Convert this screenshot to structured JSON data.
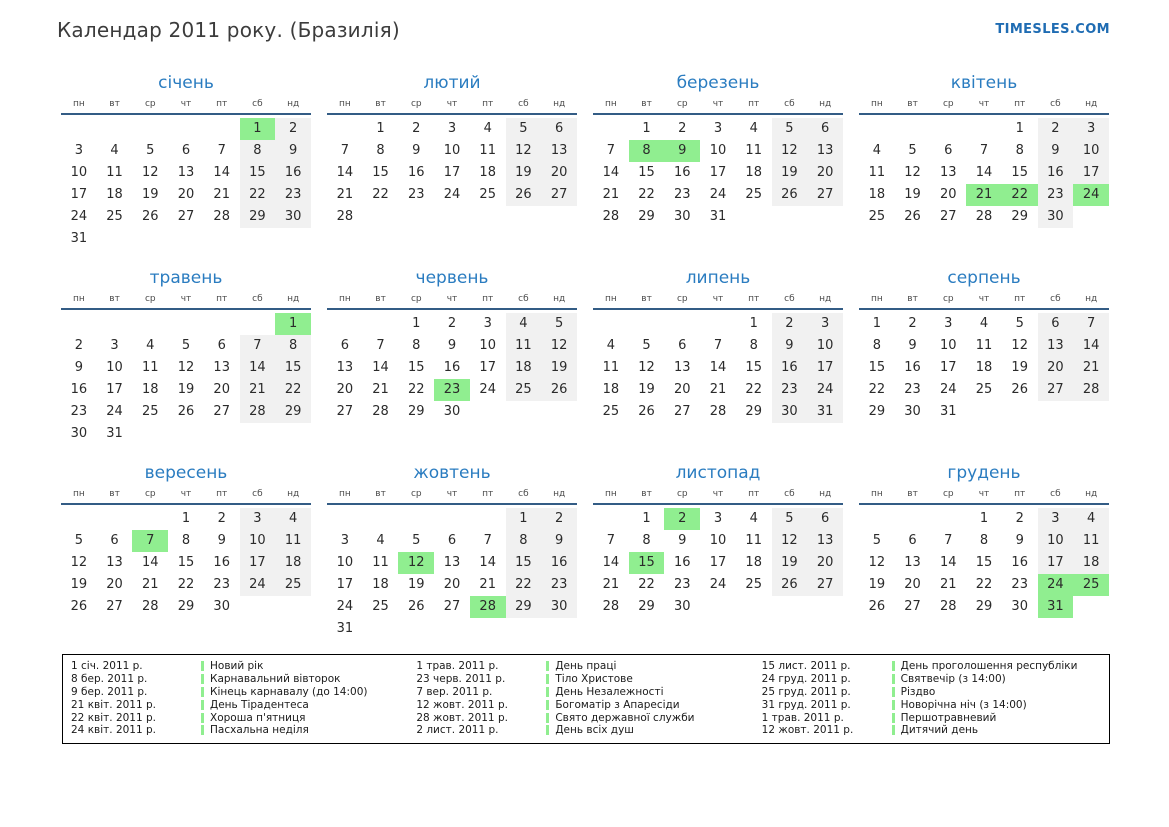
{
  "header": {
    "title": "Календар 2011 року. (Бразилія)",
    "brand": "TIMESLES.COM"
  },
  "weekdays": [
    "пн",
    "вт",
    "ср",
    "чт",
    "пт",
    "сб",
    "нд"
  ],
  "months": [
    {
      "name": "січень",
      "holidays": [
        1
      ],
      "weeks": [
        [
          "",
          "",
          "",
          "",
          "",
          "1",
          "2"
        ],
        [
          "3",
          "4",
          "5",
          "6",
          "7",
          "8",
          "9"
        ],
        [
          "10",
          "11",
          "12",
          "13",
          "14",
          "15",
          "16"
        ],
        [
          "17",
          "18",
          "19",
          "20",
          "21",
          "22",
          "23"
        ],
        [
          "24",
          "25",
          "26",
          "27",
          "28",
          "29",
          "30"
        ],
        [
          "31",
          "",
          "",
          "",
          "",
          "",
          ""
        ]
      ]
    },
    {
      "name": "лютий",
      "holidays": [],
      "weeks": [
        [
          "",
          "1",
          "2",
          "3",
          "4",
          "5",
          "6"
        ],
        [
          "7",
          "8",
          "9",
          "10",
          "11",
          "12",
          "13"
        ],
        [
          "14",
          "15",
          "16",
          "17",
          "18",
          "19",
          "20"
        ],
        [
          "21",
          "22",
          "23",
          "24",
          "25",
          "26",
          "27"
        ],
        [
          "28",
          "",
          "",
          "",
          "",
          "",
          ""
        ]
      ]
    },
    {
      "name": "березень",
      "holidays": [
        8,
        9
      ],
      "weeks": [
        [
          "",
          "1",
          "2",
          "3",
          "4",
          "5",
          "6"
        ],
        [
          "7",
          "8",
          "9",
          "10",
          "11",
          "12",
          "13"
        ],
        [
          "14",
          "15",
          "16",
          "17",
          "18",
          "19",
          "20"
        ],
        [
          "21",
          "22",
          "23",
          "24",
          "25",
          "26",
          "27"
        ],
        [
          "28",
          "29",
          "30",
          "31",
          "",
          "",
          ""
        ]
      ]
    },
    {
      "name": "квітень",
      "holidays": [
        21,
        22,
        24
      ],
      "weeks": [
        [
          "",
          "",
          "",
          "",
          "1",
          "2",
          "3"
        ],
        [
          "4",
          "5",
          "6",
          "7",
          "8",
          "9",
          "10"
        ],
        [
          "11",
          "12",
          "13",
          "14",
          "15",
          "16",
          "17"
        ],
        [
          "18",
          "19",
          "20",
          "21",
          "22",
          "23",
          "24"
        ],
        [
          "25",
          "26",
          "27",
          "28",
          "29",
          "30",
          ""
        ]
      ]
    },
    {
      "name": "травень",
      "holidays": [
        1
      ],
      "weeks": [
        [
          "",
          "",
          "",
          "",
          "",
          "",
          "1"
        ],
        [
          "2",
          "3",
          "4",
          "5",
          "6",
          "7",
          "8"
        ],
        [
          "9",
          "10",
          "11",
          "12",
          "13",
          "14",
          "15"
        ],
        [
          "16",
          "17",
          "18",
          "19",
          "20",
          "21",
          "22"
        ],
        [
          "23",
          "24",
          "25",
          "26",
          "27",
          "28",
          "29"
        ],
        [
          "30",
          "31",
          "",
          "",
          "",
          "",
          ""
        ]
      ]
    },
    {
      "name": "червень",
      "holidays": [
        23
      ],
      "weeks": [
        [
          "",
          "",
          "1",
          "2",
          "3",
          "4",
          "5"
        ],
        [
          "6",
          "7",
          "8",
          "9",
          "10",
          "11",
          "12"
        ],
        [
          "13",
          "14",
          "15",
          "16",
          "17",
          "18",
          "19"
        ],
        [
          "20",
          "21",
          "22",
          "23",
          "24",
          "25",
          "26"
        ],
        [
          "27",
          "28",
          "29",
          "30",
          "",
          "",
          ""
        ]
      ]
    },
    {
      "name": "липень",
      "holidays": [],
      "weeks": [
        [
          "",
          "",
          "",
          "",
          "1",
          "2",
          "3"
        ],
        [
          "4",
          "5",
          "6",
          "7",
          "8",
          "9",
          "10"
        ],
        [
          "11",
          "12",
          "13",
          "14",
          "15",
          "16",
          "17"
        ],
        [
          "18",
          "19",
          "20",
          "21",
          "22",
          "23",
          "24"
        ],
        [
          "25",
          "26",
          "27",
          "28",
          "29",
          "30",
          "31"
        ]
      ]
    },
    {
      "name": "серпень",
      "holidays": [],
      "weeks": [
        [
          "1",
          "2",
          "3",
          "4",
          "5",
          "6",
          "7"
        ],
        [
          "8",
          "9",
          "10",
          "11",
          "12",
          "13",
          "14"
        ],
        [
          "15",
          "16",
          "17",
          "18",
          "19",
          "20",
          "21"
        ],
        [
          "22",
          "23",
          "24",
          "25",
          "26",
          "27",
          "28"
        ],
        [
          "29",
          "30",
          "31",
          "",
          "",
          "",
          ""
        ]
      ]
    },
    {
      "name": "вересень",
      "holidays": [
        7
      ],
      "weeks": [
        [
          "",
          "",
          "",
          "1",
          "2",
          "3",
          "4"
        ],
        [
          "5",
          "6",
          "7",
          "8",
          "9",
          "10",
          "11"
        ],
        [
          "12",
          "13",
          "14",
          "15",
          "16",
          "17",
          "18"
        ],
        [
          "19",
          "20",
          "21",
          "22",
          "23",
          "24",
          "25"
        ],
        [
          "26",
          "27",
          "28",
          "29",
          "30",
          "",
          ""
        ]
      ]
    },
    {
      "name": "жовтень",
      "holidays": [
        12,
        28
      ],
      "weeks": [
        [
          "",
          "",
          "",
          "",
          "",
          "1",
          "2"
        ],
        [
          "3",
          "4",
          "5",
          "6",
          "7",
          "8",
          "9"
        ],
        [
          "10",
          "11",
          "12",
          "13",
          "14",
          "15",
          "16"
        ],
        [
          "17",
          "18",
          "19",
          "20",
          "21",
          "22",
          "23"
        ],
        [
          "24",
          "25",
          "26",
          "27",
          "28",
          "29",
          "30"
        ],
        [
          "31",
          "",
          "",
          "",
          "",
          "",
          ""
        ]
      ]
    },
    {
      "name": "листопад",
      "holidays": [
        2,
        15
      ],
      "weeks": [
        [
          "",
          "1",
          "2",
          "3",
          "4",
          "5",
          "6"
        ],
        [
          "7",
          "8",
          "9",
          "10",
          "11",
          "12",
          "13"
        ],
        [
          "14",
          "15",
          "16",
          "17",
          "18",
          "19",
          "20"
        ],
        [
          "21",
          "22",
          "23",
          "24",
          "25",
          "26",
          "27"
        ],
        [
          "28",
          "29",
          "30",
          "",
          "",
          "",
          ""
        ]
      ]
    },
    {
      "name": "грудень",
      "holidays": [
        24,
        25,
        31
      ],
      "weeks": [
        [
          "",
          "",
          "",
          "1",
          "2",
          "3",
          "4"
        ],
        [
          "5",
          "6",
          "7",
          "8",
          "9",
          "10",
          "11"
        ],
        [
          "12",
          "13",
          "14",
          "15",
          "16",
          "17",
          "18"
        ],
        [
          "19",
          "20",
          "21",
          "22",
          "23",
          "24",
          "25"
        ],
        [
          "26",
          "27",
          "28",
          "29",
          "30",
          "31",
          ""
        ]
      ]
    }
  ],
  "legend": {
    "columns": [
      [
        {
          "date": "1 січ. 2011 р.",
          "name": "Новий рік"
        },
        {
          "date": "8 бер. 2011 р.",
          "name": "Карнавальний вівторок"
        },
        {
          "date": "9 бер. 2011 р.",
          "name": "Кінець карнавалу (до 14:00)"
        },
        {
          "date": "21 квіт. 2011 р.",
          "name": "День Тірадентеса"
        },
        {
          "date": "22 квіт. 2011 р.",
          "name": "Хороша п'ятниця"
        },
        {
          "date": "24 квіт. 2011 р.",
          "name": "Пасхальна неділя"
        }
      ],
      [
        {
          "date": "1 трав. 2011 р.",
          "name": "День праці"
        },
        {
          "date": "23 черв. 2011 р.",
          "name": "Тіло Христове"
        },
        {
          "date": "7 вер. 2011 р.",
          "name": "День Незалежності"
        },
        {
          "date": "12 жовт. 2011 р.",
          "name": "Богоматір з Апаресіди"
        },
        {
          "date": "28 жовт. 2011 р.",
          "name": "Свято державної служби"
        },
        {
          "date": "2 лист. 2011 р.",
          "name": "День всіх душ"
        }
      ],
      [
        {
          "date": "15 лист. 2011 р.",
          "name": "День проголошення республіки"
        },
        {
          "date": "24 груд. 2011 р.",
          "name": "Святвечір (з 14:00)"
        },
        {
          "date": "25 груд. 2011 р.",
          "name": "Різдво"
        },
        {
          "date": "31 груд. 2011 р.",
          "name": "Новорічна ніч (з 14:00)"
        },
        {
          "date": "1 трав. 2011 р.",
          "name": "Першотравневий"
        },
        {
          "date": "12 жовт. 2011 р.",
          "name": "Дитячий день"
        }
      ]
    ]
  },
  "colors": {
    "accent_blue": "#2a7cc0",
    "brand_blue": "#1f6cb3",
    "holiday_green": "#90ee90",
    "weekend_gray": "#f1f1f1",
    "header_line": "#335c85"
  }
}
